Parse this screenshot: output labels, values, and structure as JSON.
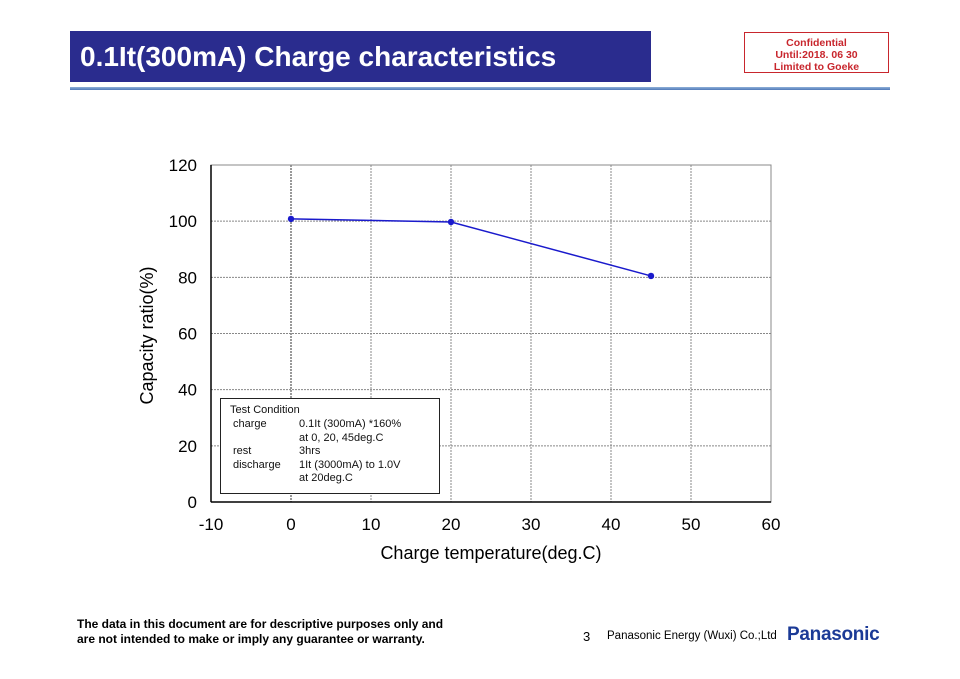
{
  "header": {
    "title": "0.1It(300mA) Charge characteristics"
  },
  "stamp": {
    "lines": [
      "Confidential",
      "Until:2018. 06 30",
      "Limited to Goeke"
    ]
  },
  "chart_data": {
    "type": "line",
    "title": "",
    "xlabel": "Charge temperature(deg.C)",
    "ylabel": "Capacity ratio(%)",
    "xlim": [
      -10,
      60
    ],
    "ylim": [
      0,
      120
    ],
    "xticks": [
      -10,
      0,
      10,
      20,
      30,
      40,
      50,
      60
    ],
    "yticks": [
      0,
      20,
      40,
      60,
      80,
      100,
      120
    ],
    "grid": true,
    "series": [
      {
        "x": [
          0,
          20,
          45
        ],
        "values": [
          100.8,
          99.7,
          80.5
        ],
        "color": "#1a1acc"
      }
    ],
    "legend_box": {
      "heading": "Test Condition",
      "rows": [
        [
          "charge",
          "0.1It (300mA) *160%"
        ],
        [
          "",
          "at 0, 20, 45deg.C"
        ],
        [
          "rest",
          "3hrs"
        ],
        [
          "discharge",
          "1It (3000mA) to 1.0V"
        ],
        [
          "",
          " at 20deg.C"
        ]
      ]
    }
  },
  "footer": {
    "disclaimer": [
      "The data in this document are for descriptive purposes only and",
      "are not intended to make or imply any guarantee or warranty."
    ],
    "page": "3",
    "company": "Panasonic Energy (Wuxi) Co.;Ltd",
    "logo": "Panasonic"
  }
}
